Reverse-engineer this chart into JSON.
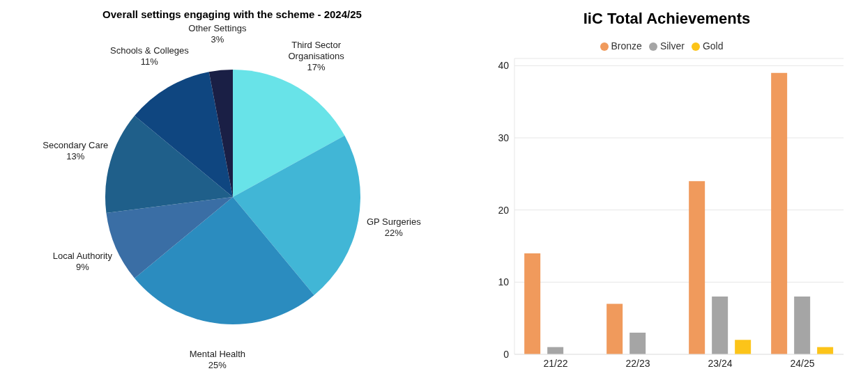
{
  "chart_data": [
    {
      "type": "pie",
      "title": "Overall settings engaging with the scheme - 2024/25",
      "categories": [
        "Third Sector Organisations",
        "GP Surgeries",
        "Mental Health",
        "Local Authority",
        "Secondary Care",
        "Schools & Colleges",
        "Other Settings"
      ],
      "values": [
        17,
        22,
        25,
        9,
        13,
        11,
        3
      ],
      "value_labels": [
        "17%",
        "22%",
        "25%",
        "9%",
        "13%",
        "11%",
        "3%"
      ],
      "colors": [
        "#68e3e8",
        "#41b6d6",
        "#2b8cbf",
        "#3a6ea5",
        "#1f5f8a",
        "#0f4680",
        "#1a1f45"
      ],
      "legend": false
    },
    {
      "type": "bar",
      "title": "IiC Total Achievements",
      "categories": [
        "21/22",
        "22/23",
        "23/24",
        "24/25"
      ],
      "series": [
        {
          "name": "Bronze",
          "color": "#f09a5c",
          "values": [
            14,
            7,
            24,
            39
          ]
        },
        {
          "name": "Silver",
          "color": "#a5a5a5",
          "values": [
            1,
            3,
            8,
            8
          ]
        },
        {
          "name": "Gold",
          "color": "#fcc419",
          "values": [
            0,
            0,
            2,
            1
          ]
        }
      ],
      "ylim": [
        0,
        41
      ],
      "yticks": [
        0,
        10,
        20,
        30,
        40
      ],
      "grid": "y",
      "legend": "top"
    }
  ]
}
